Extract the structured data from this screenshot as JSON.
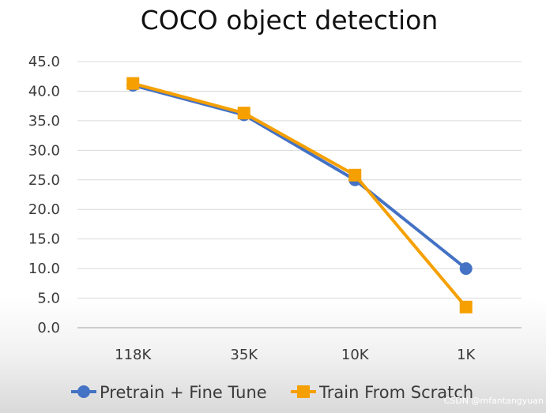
{
  "chart_data": {
    "type": "line",
    "title": "COCO object detection",
    "xlabel": "",
    "ylabel": "",
    "categories": [
      "118K",
      "35K",
      "10K",
      "1K"
    ],
    "ylim": [
      0,
      45
    ],
    "yticks": [
      "0.0",
      "5.0",
      "10.0",
      "15.0",
      "20.0",
      "25.0",
      "30.0",
      "35.0",
      "40.0",
      "45.0"
    ],
    "grid": true,
    "legend_position": "bottom",
    "series": [
      {
        "name": "Pretrain + Fine Tune",
        "values": [
          41.0,
          36.0,
          25.0,
          10.0
        ],
        "color": "#4472C4",
        "marker": "circle"
      },
      {
        "name": "Train From Scratch",
        "values": [
          41.3,
          36.3,
          25.8,
          3.5
        ],
        "color": "#F5A000",
        "marker": "square"
      }
    ]
  },
  "watermark": "CSDN @mfantangyuan"
}
